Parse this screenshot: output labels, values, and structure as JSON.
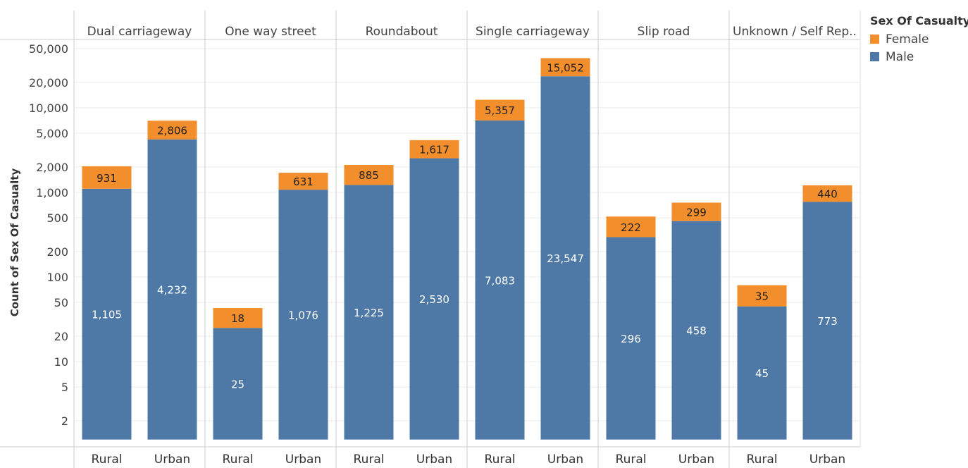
{
  "chart_data": {
    "type": "bar",
    "stacked": true,
    "scale": "log",
    "ylabel": "Count of Sex Of Casualty",
    "ylim": [
      1.2,
      60000
    ],
    "grid": true,
    "legend_position": "top-right",
    "y_ticks": [
      {
        "value": 50000,
        "label": "50,000"
      },
      {
        "value": 20000,
        "label": "20,000"
      },
      {
        "value": 10000,
        "label": "10,000"
      },
      {
        "value": 5000,
        "label": "5,000"
      },
      {
        "value": 2000,
        "label": "2,000"
      },
      {
        "value": 1000,
        "label": "1,000"
      },
      {
        "value": 500,
        "label": "500"
      },
      {
        "value": 200,
        "label": "200"
      },
      {
        "value": 100,
        "label": "100"
      },
      {
        "value": 50,
        "label": "50"
      },
      {
        "value": 20,
        "label": "20"
      },
      {
        "value": 10,
        "label": "10"
      },
      {
        "value": 5,
        "label": "5"
      },
      {
        "value": 2,
        "label": "2"
      }
    ],
    "panels": [
      {
        "title": "Dual carriageway",
        "bars": [
          {
            "category": "Rural",
            "male": 1105,
            "male_label": "1,105",
            "female": 931,
            "female_label": "931"
          },
          {
            "category": "Urban",
            "male": 4232,
            "male_label": "4,232",
            "female": 2806,
            "female_label": "2,806"
          }
        ]
      },
      {
        "title": "One way street",
        "bars": [
          {
            "category": "Rural",
            "male": 25,
            "male_label": "25",
            "female": 18,
            "female_label": "18"
          },
          {
            "category": "Urban",
            "male": 1076,
            "male_label": "1,076",
            "female": 631,
            "female_label": "631"
          }
        ]
      },
      {
        "title": "Roundabout",
        "bars": [
          {
            "category": "Rural",
            "male": 1225,
            "male_label": "1,225",
            "female": 885,
            "female_label": "885"
          },
          {
            "category": "Urban",
            "male": 2530,
            "male_label": "2,530",
            "female": 1617,
            "female_label": "1,617"
          }
        ]
      },
      {
        "title": "Single carriageway",
        "bars": [
          {
            "category": "Rural",
            "male": 7083,
            "male_label": "7,083",
            "female": 5357,
            "female_label": "5,357"
          },
          {
            "category": "Urban",
            "male": 23547,
            "male_label": "23,547",
            "female": 15052,
            "female_label": "15,052"
          }
        ]
      },
      {
        "title": "Slip road",
        "bars": [
          {
            "category": "Rural",
            "male": 296,
            "male_label": "296",
            "female": 222,
            "female_label": "222"
          },
          {
            "category": "Urban",
            "male": 458,
            "male_label": "458",
            "female": 299,
            "female_label": "299"
          }
        ]
      },
      {
        "title": "Unknown / Self Rep..",
        "bars": [
          {
            "category": "Rural",
            "male": 45,
            "male_label": "45",
            "female": 35,
            "female_label": "35"
          },
          {
            "category": "Urban",
            "male": 773,
            "male_label": "773",
            "female": 440,
            "female_label": "440"
          }
        ]
      }
    ],
    "legend": {
      "title": "Sex Of Casualty",
      "items": [
        {
          "name": "Female",
          "color": "#f28e2b"
        },
        {
          "name": "Male",
          "color": "#4e79a7"
        }
      ]
    }
  }
}
